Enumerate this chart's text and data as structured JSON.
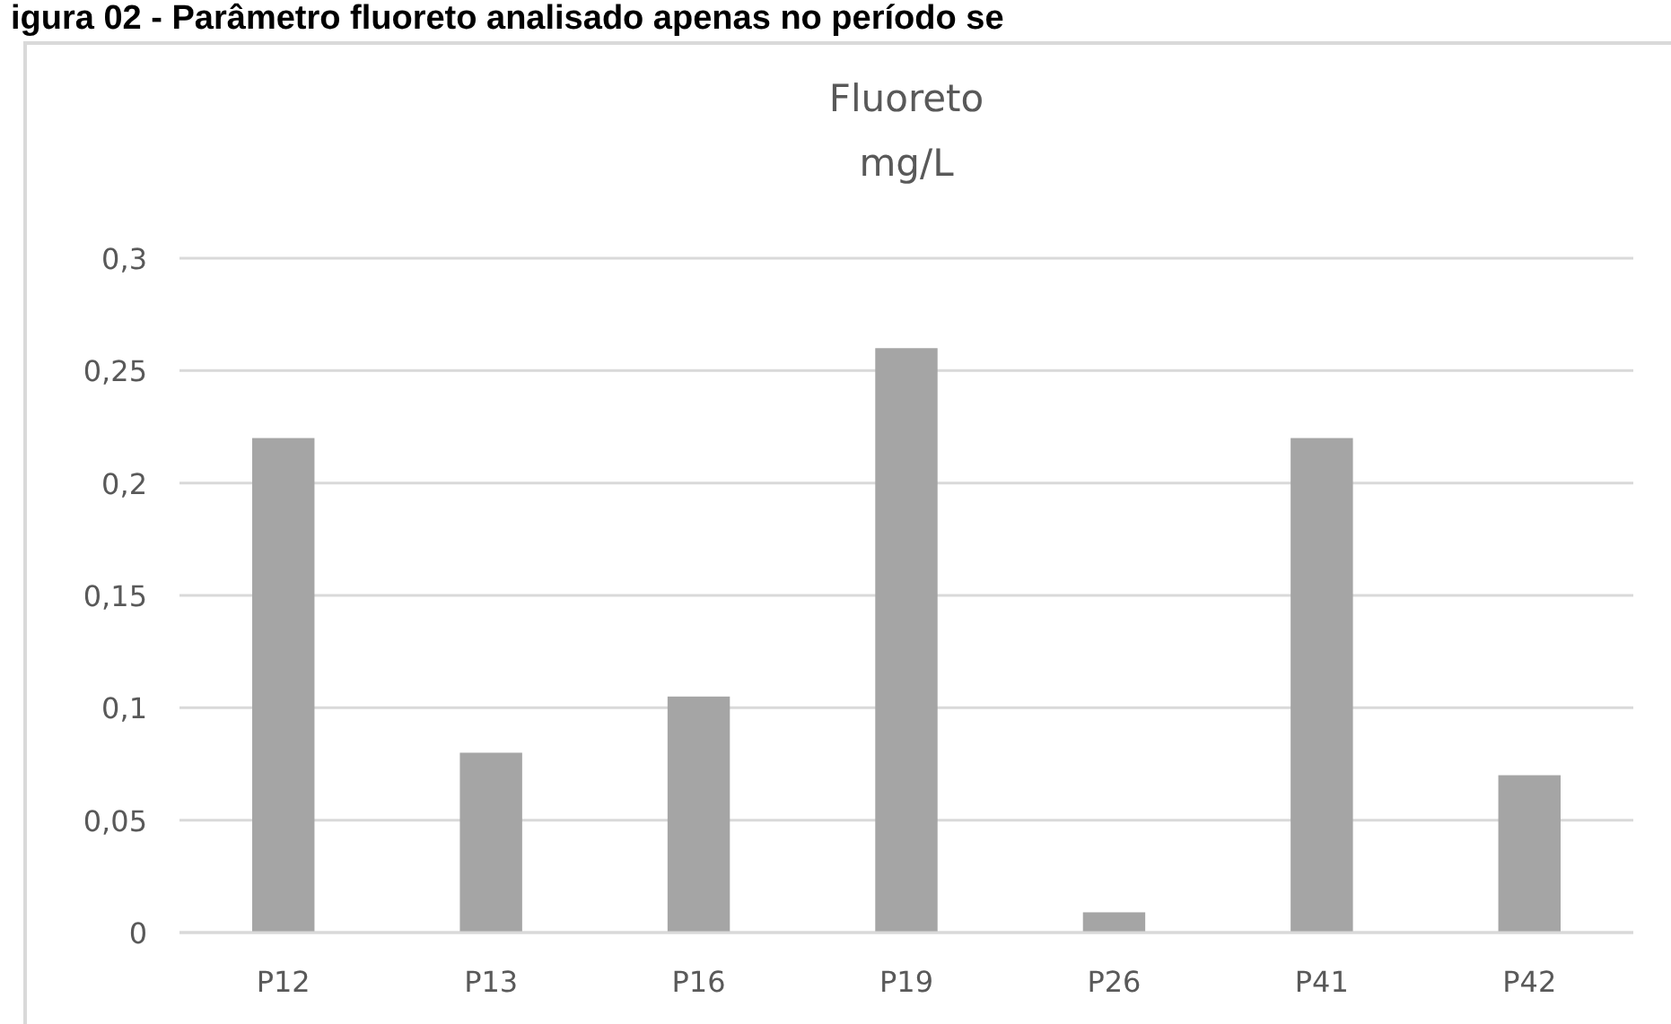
{
  "chart_data": {
    "type": "bar",
    "title": "Fluoreto",
    "subtitle": "mg/L",
    "annotations": [
      "igura 02 - Parâmetro fluoreto analisado apenas no período se"
    ],
    "categories": [
      "P12",
      "P13",
      "P16",
      "P19",
      "P26",
      "P41",
      "P42"
    ],
    "values": [
      0.22,
      0.08,
      0.105,
      0.26,
      0.009,
      0.22,
      0.07
    ],
    "color": "#a5a5a5",
    "ylim": [
      0,
      0.3
    ],
    "yticks": [
      {
        "value": 0,
        "label": "0"
      },
      {
        "value": 0.05,
        "label": "0,05"
      },
      {
        "value": 0.1,
        "label": "0,1"
      },
      {
        "value": 0.15,
        "label": "0,15"
      },
      {
        "value": 0.2,
        "label": "0,2"
      },
      {
        "value": 0.25,
        "label": "0,25"
      },
      {
        "value": 0.3,
        "label": "0,3"
      }
    ],
    "grid": true
  }
}
